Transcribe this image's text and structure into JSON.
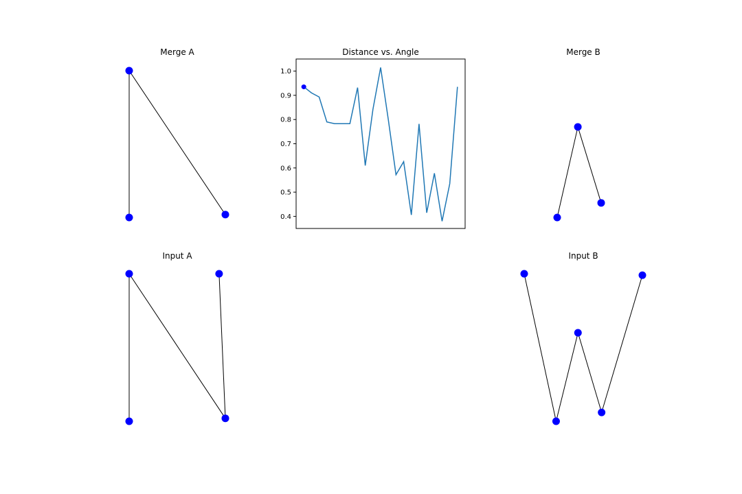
{
  "chart_data": [
    {
      "id": "merge-a",
      "type": "scatter",
      "title": "Merge A",
      "points": [
        [
          0.0,
          1.0
        ],
        [
          0.0,
          0.0
        ],
        [
          1.0,
          0.02
        ]
      ],
      "edges": [
        [
          0,
          1
        ],
        [
          0,
          2
        ]
      ],
      "xlim": [
        0.0,
        1.0
      ],
      "ylim": [
        0.0,
        1.0
      ],
      "marker_color": "#0000ff",
      "line_color": "#000000",
      "grid": false,
      "axes_visible": false
    },
    {
      "id": "distance-angle",
      "type": "line",
      "title": "Distance vs. Angle",
      "x": [
        0,
        1,
        2,
        3,
        4,
        5,
        6,
        7,
        8,
        9,
        10,
        11,
        12,
        13,
        14,
        15,
        16,
        17,
        18,
        19,
        20
      ],
      "values": [
        0.935,
        0.91,
        0.893,
        0.79,
        0.783,
        0.783,
        0.783,
        0.932,
        0.61,
        0.842,
        1.015,
        0.8,
        0.572,
        0.626,
        0.406,
        0.782,
        0.415,
        0.578,
        0.38,
        0.535,
        0.935
      ],
      "marker_point": [
        0,
        0.935
      ],
      "yticks": [
        "0.4",
        "0.5",
        "0.6",
        "0.7",
        "0.8",
        "0.9",
        "1.0"
      ],
      "ytick_values": [
        0.4,
        0.5,
        0.6,
        0.7,
        0.8,
        0.9,
        1.0
      ],
      "ylim": [
        0.35,
        1.05
      ],
      "xlim": [
        -1.0,
        21.0
      ],
      "line_color": "#1f77b4",
      "marker_color": "#0000ff",
      "grid": false
    },
    {
      "id": "merge-b",
      "type": "scatter",
      "title": "Merge B",
      "points": [
        [
          0.0,
          0.0
        ],
        [
          0.47,
          0.62
        ],
        [
          1.0,
          0.1
        ]
      ],
      "edges": [
        [
          0,
          1
        ],
        [
          1,
          2
        ]
      ],
      "xlim": [
        0.0,
        1.0
      ],
      "ylim": [
        0.0,
        1.0
      ],
      "marker_color": "#0000ff",
      "line_color": "#000000",
      "grid": false,
      "axes_visible": false
    },
    {
      "id": "input-a",
      "type": "scatter",
      "title": "Input A",
      "points": [
        [
          0.0,
          1.0
        ],
        [
          0.0,
          0.0
        ],
        [
          1.0,
          0.02
        ],
        [
          0.935,
          1.0
        ]
      ],
      "edges": [
        [
          0,
          1
        ],
        [
          0,
          2
        ],
        [
          2,
          3
        ]
      ],
      "xlim": [
        0.0,
        1.0
      ],
      "ylim": [
        0.0,
        1.0
      ],
      "marker_color": "#0000ff",
      "line_color": "#000000",
      "grid": false,
      "axes_visible": false
    },
    {
      "id": "input-b",
      "type": "scatter",
      "title": "Input B",
      "points": [
        [
          0.0,
          1.0
        ],
        [
          0.27,
          0.0
        ],
        [
          0.455,
          0.6
        ],
        [
          0.655,
          0.06
        ],
        [
          1.0,
          0.99
        ]
      ],
      "edges": [
        [
          0,
          1
        ],
        [
          1,
          2
        ],
        [
          2,
          3
        ],
        [
          3,
          4
        ]
      ],
      "xlim": [
        0.0,
        1.0
      ],
      "ylim": [
        0.0,
        1.0
      ],
      "marker_color": "#0000ff",
      "line_color": "#000000",
      "grid": false,
      "axes_visible": false
    }
  ]
}
